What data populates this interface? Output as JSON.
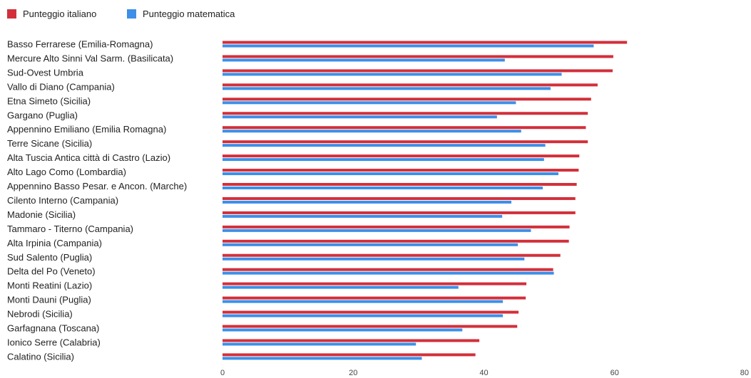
{
  "chart_data": {
    "type": "bar",
    "orientation": "horizontal",
    "title": "",
    "xlabel": "",
    "ylabel": "",
    "xlim": [
      0,
      80
    ],
    "x_ticks": [
      0,
      20,
      40,
      60,
      80
    ],
    "grid": false,
    "legend_position": "top-left",
    "categories": [
      "Basso Ferrarese (Emilia-Romagna)",
      "Mercure Alto Sinni Val Sarm. (Basilicata)",
      "Sud-Ovest Umbria",
      "Vallo di Diano (Campania)",
      "Etna Simeto (Sicilia)",
      "Gargano (Puglia)",
      "Appennino Emiliano (Emilia Romagna)",
      "Terre Sicane (Sicilia)",
      "Alta Tuscia Antica città di Castro (Lazio)",
      "Alto Lago Como (Lombardia)",
      "Appennino Basso Pesar. e Ancon. (Marche)",
      "Cilento Interno (Campania)",
      "Madonie (Sicilia)",
      "Tammaro - Titerno (Campania)",
      "Alta Irpinia (Campania)",
      "Sud Salento (Puglia)",
      "Delta del Po (Veneto)",
      "Monti Reatini (Lazio)",
      "Monti Dauni (Puglia)",
      "Nebrodi (Sicilia)",
      "Garfagnana (Toscana)",
      "Ionico Serre (Calabria)",
      "Calatino (Sicilia)"
    ],
    "series": [
      {
        "name": "Punteggio italiano",
        "color": "#d32f3a",
        "values": [
          61.9,
          59.8,
          59.7,
          57.4,
          56.4,
          55.9,
          55.6,
          55.9,
          54.6,
          54.5,
          54.2,
          54.0,
          54.0,
          53.1,
          53.0,
          51.7,
          50.6,
          46.5,
          46.4,
          45.3,
          45.1,
          39.3,
          38.7
        ]
      },
      {
        "name": "Punteggio matematica",
        "color": "#3d8fe8",
        "values": [
          56.8,
          43.2,
          51.9,
          50.2,
          44.9,
          42.0,
          45.7,
          49.4,
          49.2,
          51.4,
          49.0,
          44.2,
          42.8,
          47.2,
          45.2,
          46.2,
          50.7,
          36.1,
          42.9,
          42.9,
          36.7,
          29.6,
          30.5
        ]
      }
    ]
  }
}
